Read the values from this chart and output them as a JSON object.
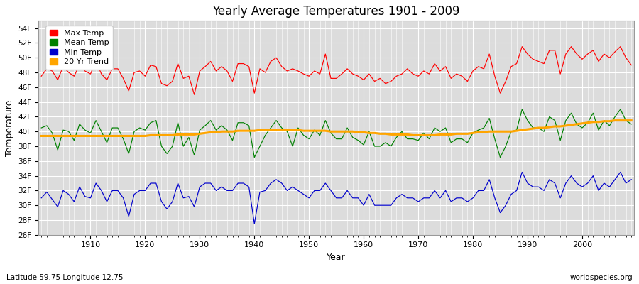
{
  "title": "Yearly Average Temperatures 1901 - 2009",
  "xlabel": "Year",
  "ylabel": "Temperature",
  "lat_lon_label": "Latitude 59.75 Longitude 12.75",
  "source_label": "worldspecies.org",
  "ylim": [
    26,
    55
  ],
  "xlim": [
    1901,
    2009
  ],
  "yticks": [
    26,
    28,
    30,
    32,
    34,
    36,
    38,
    40,
    42,
    44,
    46,
    48,
    50,
    52,
    54
  ],
  "ytick_labels": [
    "26F",
    "28F",
    "30F",
    "32F",
    "34F",
    "36F",
    "38F",
    "40F",
    "42F",
    "44F",
    "46F",
    "48F",
    "50F",
    "52F",
    "54F"
  ],
  "xticks": [
    1910,
    1920,
    1930,
    1940,
    1950,
    1960,
    1970,
    1980,
    1990,
    2000
  ],
  "max_temp_color": "#ff0000",
  "mean_temp_color": "#008000",
  "min_temp_color": "#0000cc",
  "trend_color": "#ffa500",
  "bg_color": "#dcdcdc",
  "grid_color": "#ffffff",
  "legend_labels": [
    "Max Temp",
    "Mean Temp",
    "Min Temp",
    "20 Yr Trend"
  ],
  "years": [
    1901,
    1902,
    1903,
    1904,
    1905,
    1906,
    1907,
    1908,
    1909,
    1910,
    1911,
    1912,
    1913,
    1914,
    1915,
    1916,
    1917,
    1918,
    1919,
    1920,
    1921,
    1922,
    1923,
    1924,
    1925,
    1926,
    1927,
    1928,
    1929,
    1930,
    1931,
    1932,
    1933,
    1934,
    1935,
    1936,
    1937,
    1938,
    1939,
    1940,
    1941,
    1942,
    1943,
    1944,
    1945,
    1946,
    1947,
    1948,
    1949,
    1950,
    1951,
    1952,
    1953,
    1954,
    1955,
    1956,
    1957,
    1958,
    1959,
    1960,
    1961,
    1962,
    1963,
    1964,
    1965,
    1966,
    1967,
    1968,
    1969,
    1970,
    1971,
    1972,
    1973,
    1974,
    1975,
    1976,
    1977,
    1978,
    1979,
    1980,
    1981,
    1982,
    1983,
    1984,
    1985,
    1986,
    1987,
    1988,
    1989,
    1990,
    1991,
    1992,
    1993,
    1994,
    1995,
    1996,
    1997,
    1998,
    1999,
    2000,
    2001,
    2002,
    2003,
    2004,
    2005,
    2006,
    2007,
    2008,
    2009
  ],
  "max_temp": [
    47.5,
    48.5,
    48.2,
    47.0,
    48.8,
    48.0,
    47.5,
    49.0,
    48.2,
    47.8,
    49.5,
    47.8,
    47.0,
    48.5,
    48.5,
    47.2,
    45.5,
    48.0,
    48.2,
    47.5,
    49.0,
    48.8,
    46.5,
    46.2,
    46.8,
    49.2,
    47.2,
    47.5,
    45.0,
    48.2,
    48.8,
    49.5,
    48.2,
    48.8,
    48.2,
    46.8,
    49.2,
    49.2,
    48.8,
    45.2,
    48.5,
    48.0,
    49.5,
    50.0,
    48.8,
    48.2,
    48.5,
    48.2,
    47.8,
    47.5,
    48.2,
    47.8,
    50.5,
    47.2,
    47.2,
    47.8,
    48.5,
    47.8,
    47.5,
    47.0,
    47.8,
    46.8,
    47.2,
    46.5,
    46.8,
    47.5,
    47.8,
    48.5,
    47.8,
    47.5,
    48.2,
    47.8,
    49.2,
    48.2,
    48.8,
    47.2,
    47.8,
    47.5,
    46.8,
    48.2,
    48.8,
    48.5,
    50.5,
    47.5,
    45.2,
    46.8,
    48.8,
    49.2,
    51.5,
    50.5,
    49.8,
    49.5,
    49.2,
    51.0,
    51.0,
    47.8,
    50.5,
    51.5,
    50.5,
    49.8,
    50.5,
    51.0,
    49.5,
    50.5,
    50.0,
    50.8,
    51.5,
    50.0,
    49.0
  ],
  "mean_temp": [
    40.5,
    40.8,
    39.8,
    37.5,
    40.2,
    40.0,
    38.8,
    41.0,
    40.2,
    39.8,
    41.5,
    40.0,
    38.5,
    40.5,
    40.5,
    39.0,
    37.0,
    40.0,
    40.5,
    40.2,
    41.2,
    41.5,
    38.0,
    37.0,
    38.0,
    41.2,
    38.0,
    39.2,
    36.8,
    40.2,
    40.8,
    41.5,
    40.2,
    40.8,
    40.2,
    38.8,
    41.2,
    41.2,
    40.8,
    36.5,
    38.0,
    39.5,
    40.5,
    41.5,
    40.5,
    40.0,
    38.0,
    40.5,
    39.5,
    39.0,
    40.2,
    39.5,
    41.5,
    39.8,
    39.0,
    39.0,
    40.5,
    39.2,
    38.8,
    38.2,
    40.0,
    38.0,
    38.0,
    38.5,
    38.0,
    39.2,
    40.0,
    39.0,
    39.0,
    38.8,
    39.8,
    39.0,
    40.5,
    40.0,
    40.5,
    38.5,
    39.0,
    39.0,
    38.5,
    39.8,
    40.2,
    40.5,
    41.8,
    39.0,
    36.5,
    38.0,
    40.0,
    40.2,
    43.0,
    41.5,
    40.5,
    40.5,
    40.0,
    42.0,
    41.5,
    38.8,
    41.5,
    42.5,
    41.0,
    40.5,
    41.2,
    42.5,
    40.2,
    41.5,
    40.8,
    42.0,
    43.0,
    41.5,
    41.0
  ],
  "min_temp": [
    31.0,
    31.8,
    30.8,
    29.8,
    32.0,
    31.5,
    30.5,
    32.5,
    31.2,
    31.0,
    33.0,
    32.0,
    30.5,
    32.0,
    32.0,
    31.0,
    28.5,
    31.5,
    32.0,
    32.0,
    33.0,
    33.0,
    30.5,
    29.5,
    30.5,
    33.0,
    31.0,
    31.2,
    29.8,
    32.5,
    33.0,
    33.0,
    32.0,
    32.5,
    32.0,
    32.0,
    33.0,
    33.0,
    32.5,
    27.5,
    31.8,
    32.0,
    33.0,
    33.5,
    33.0,
    32.0,
    32.5,
    32.0,
    31.5,
    31.0,
    32.0,
    32.0,
    33.0,
    32.0,
    31.0,
    31.0,
    32.0,
    31.0,
    31.0,
    30.0,
    31.5,
    30.0,
    30.0,
    30.0,
    30.0,
    31.0,
    31.5,
    31.0,
    31.0,
    30.5,
    31.0,
    31.0,
    32.0,
    31.0,
    32.0,
    30.5,
    31.0,
    31.0,
    30.5,
    31.0,
    32.0,
    32.0,
    33.5,
    31.0,
    29.0,
    30.0,
    31.5,
    32.0,
    34.5,
    33.0,
    32.5,
    32.5,
    32.0,
    33.5,
    33.0,
    31.0,
    33.0,
    34.0,
    33.0,
    32.5,
    33.0,
    34.0,
    32.0,
    33.0,
    32.5,
    33.5,
    34.5,
    33.0,
    33.5
  ],
  "trend_mean": [
    39.4,
    39.4,
    39.4,
    39.4,
    39.4,
    39.4,
    39.4,
    39.4,
    39.4,
    39.4,
    39.4,
    39.4,
    39.4,
    39.4,
    39.4,
    39.4,
    39.4,
    39.4,
    39.4,
    39.4,
    39.5,
    39.5,
    39.5,
    39.5,
    39.5,
    39.6,
    39.6,
    39.6,
    39.6,
    39.7,
    39.8,
    39.9,
    39.9,
    40.0,
    40.0,
    40.0,
    40.1,
    40.1,
    40.1,
    40.1,
    40.2,
    40.2,
    40.2,
    40.2,
    40.2,
    40.2,
    40.2,
    40.2,
    40.1,
    40.1,
    40.1,
    40.1,
    40.1,
    40.0,
    40.0,
    40.0,
    40.0,
    40.0,
    39.9,
    39.9,
    39.8,
    39.8,
    39.7,
    39.7,
    39.6,
    39.6,
    39.6,
    39.6,
    39.5,
    39.5,
    39.5,
    39.5,
    39.5,
    39.6,
    39.6,
    39.6,
    39.7,
    39.7,
    39.7,
    39.8,
    39.9,
    39.9,
    40.0,
    40.0,
    40.0,
    40.0,
    40.0,
    40.1,
    40.2,
    40.3,
    40.4,
    40.5,
    40.5,
    40.6,
    40.7,
    40.7,
    40.8,
    40.9,
    41.0,
    41.1,
    41.2,
    41.3,
    41.3,
    41.4,
    41.4,
    41.5,
    41.5,
    41.5,
    41.5
  ]
}
